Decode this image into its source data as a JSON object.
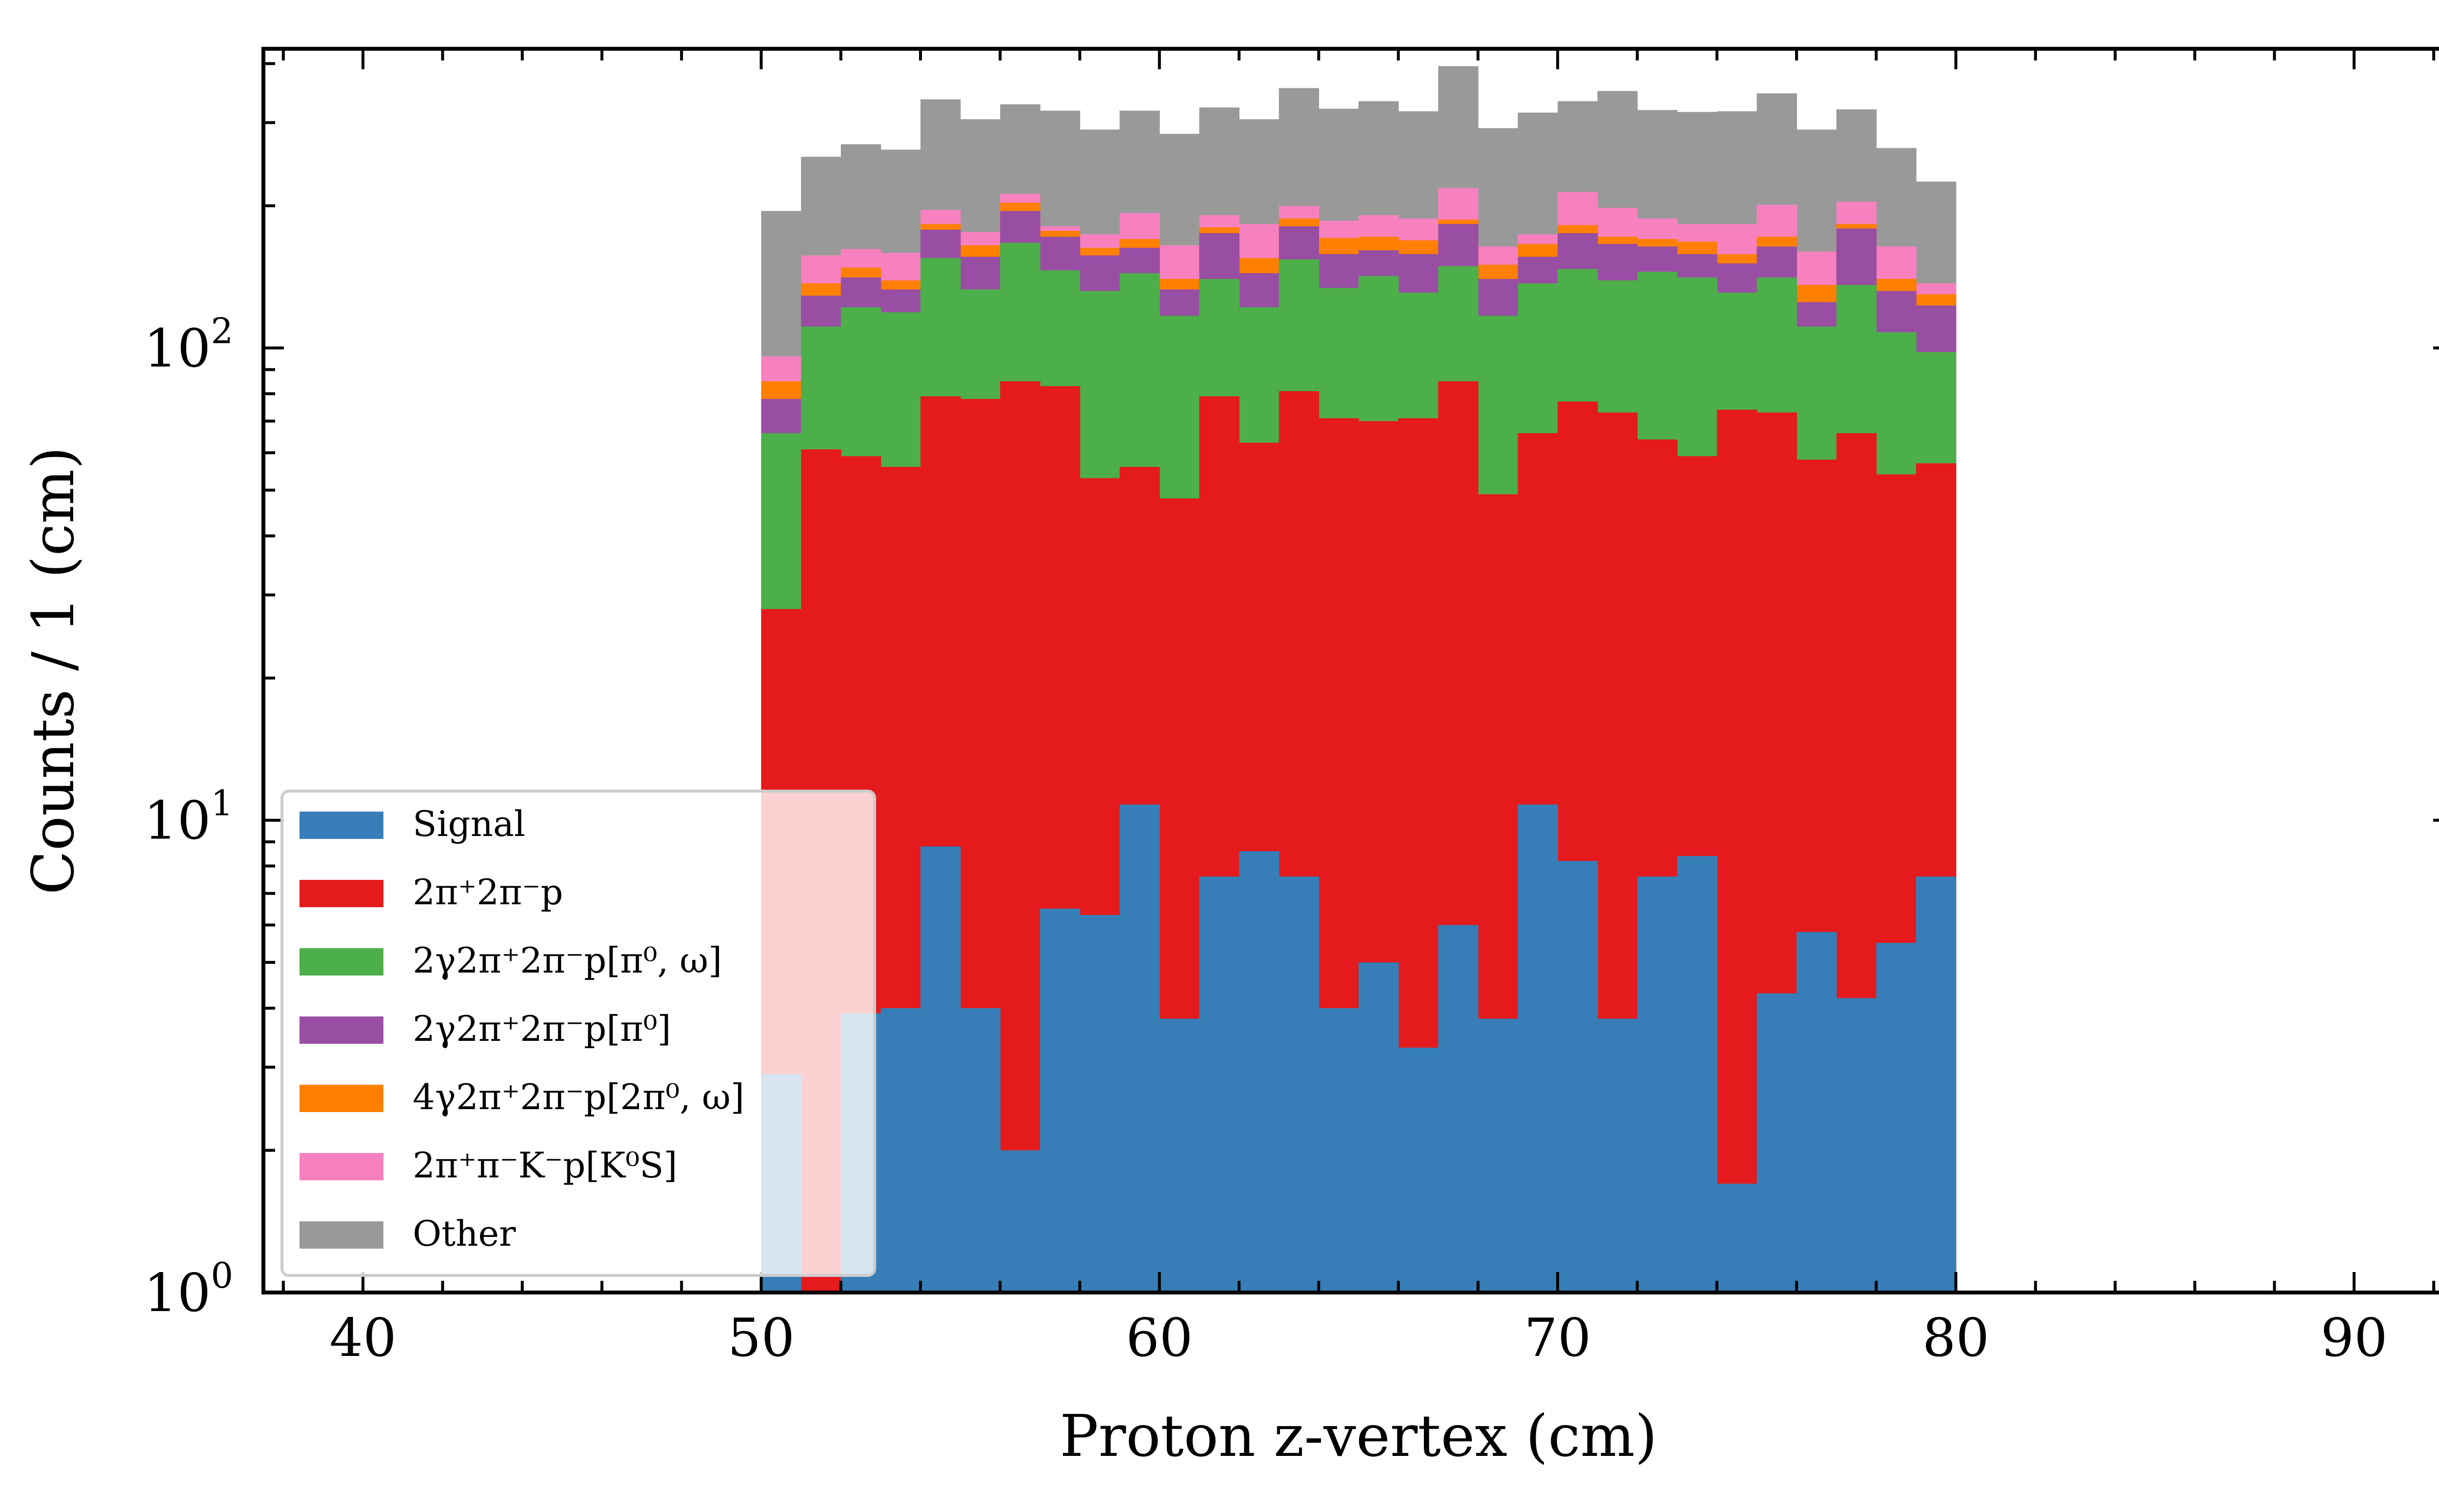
{
  "chart_data": {
    "type": "bar",
    "stacked": true,
    "histogram": true,
    "xlabel": "Proton z-vertex (cm)",
    "ylabel": "Counts / 1 (cm)",
    "xlim": [
      37.5,
      92.5
    ],
    "ylim": [
      1,
      430
    ],
    "yscale": "log",
    "x_ticks": [
      "40",
      "50",
      "60",
      "70",
      "80",
      "90"
    ],
    "y_ticks": [
      {
        "base": "10",
        "exp": "0",
        "value": 1
      },
      {
        "base": "10",
        "exp": "1",
        "value": 10
      },
      {
        "base": "10",
        "exp": "2",
        "value": 100
      }
    ],
    "bin_edges": [
      50,
      51,
      52,
      53,
      54,
      55,
      56,
      57,
      58,
      59,
      60,
      61,
      62,
      63,
      64,
      65,
      66,
      67,
      68,
      69,
      70,
      71,
      72,
      73,
      74,
      75,
      76,
      77,
      78,
      79,
      80
    ],
    "legend_position": "lower-left",
    "series_cumulative": [
      {
        "name": "Signal",
        "color": "#377eb8",
        "values": [
          2.9,
          1.0,
          3.9,
          4.0,
          8.8,
          4.0,
          2.0,
          6.5,
          6.3,
          10.8,
          3.8,
          7.6,
          8.6,
          7.6,
          4.0,
          5.0,
          3.3,
          6.0,
          3.8,
          10.8,
          8.2,
          3.8,
          7.6,
          8.4,
          1.7,
          4.3,
          5.8,
          4.2,
          5.5,
          7.6
        ]
      },
      {
        "name": "2π⁺2π⁻p",
        "color": "#e41a1c",
        "values": [
          28,
          61,
          59,
          56,
          79,
          78,
          85,
          83,
          53,
          56,
          48,
          79,
          63,
          81,
          71,
          70,
          71,
          85,
          49,
          66,
          77,
          73,
          64,
          59,
          74,
          73,
          58,
          66,
          54,
          57
        ]
      },
      {
        "name": "2γ2π⁺2π⁻p[π⁰, ω]",
        "color": "#4daf4a",
        "values": [
          66,
          111,
          122,
          119,
          155,
          133,
          167,
          146,
          132,
          144,
          117,
          140,
          122,
          154,
          134,
          142,
          131,
          149,
          117,
          137,
          147,
          139,
          145,
          141,
          131,
          141,
          111,
          136,
          108,
          98
        ]
      },
      {
        "name": "2γ2π⁺2π⁻p[π⁰]",
        "color": "#984ea3",
        "values": [
          78,
          129,
          141,
          133,
          178,
          156,
          195,
          172,
          157,
          163,
          133,
          175,
          144,
          181,
          158,
          161,
          158,
          183,
          140,
          156,
          175,
          166,
          164,
          158,
          151,
          164,
          125,
          179,
          132,
          123
        ]
      },
      {
        "name": "4γ2π⁺2π⁻p[2π⁰, ω]",
        "color": "#ff7f00",
        "values": [
          85,
          137,
          148,
          139,
          183,
          165,
          203,
          177,
          163,
          170,
          140,
          180,
          155,
          188,
          171,
          172,
          169,
          187,
          150,
          166,
          182,
          172,
          170,
          168,
          158,
          172,
          136,
          183,
          140,
          130
        ]
      },
      {
        "name": "2π⁺π⁻K⁻p[K⁰S]",
        "color": "#f781bf",
        "values": [
          96,
          157,
          162,
          159,
          196,
          176,
          212,
          181,
          174,
          193,
          165,
          191,
          183,
          200,
          186,
          191,
          188,
          218,
          164,
          174,
          214,
          198,
          188,
          183,
          183,
          201,
          160,
          204,
          164,
          137
        ]
      },
      {
        "name": "Other",
        "color": "#999999",
        "values": [
          195,
          254,
          270,
          263,
          336,
          305,
          328,
          318,
          290,
          318,
          284,
          323,
          305,
          355,
          321,
          333,
          317,
          395,
          292,
          315,
          333,
          350,
          319,
          316,
          317,
          346,
          290,
          320,
          265,
          225
        ]
      }
    ]
  }
}
